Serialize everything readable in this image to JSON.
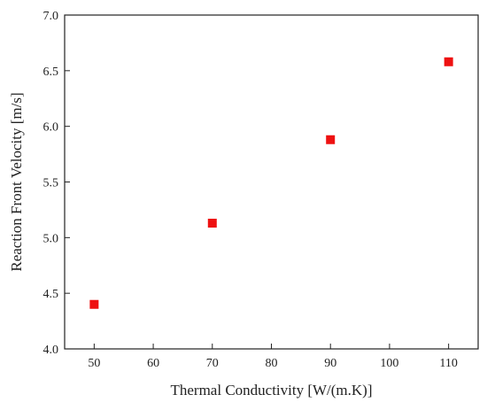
{
  "chart_data": {
    "type": "scatter",
    "title": "",
    "xlabel": "Thermal Conductivity [W/(m.K)]",
    "ylabel": "Reaction Front Velocity [m/s]",
    "xlim": [
      45,
      115
    ],
    "ylim": [
      4.0,
      7.0
    ],
    "x_ticks": [
      50,
      60,
      70,
      80,
      90,
      100,
      110
    ],
    "y_ticks": [
      4.0,
      4.5,
      5.0,
      5.5,
      6.0,
      6.5,
      7.0
    ],
    "y_tick_labels": [
      "4.0",
      "4.5",
      "5.0",
      "5.5",
      "6.0",
      "6.5",
      "7.0"
    ],
    "grid": false,
    "legend": "none",
    "marker": "square",
    "marker_color": "#ee1111",
    "series": [
      {
        "points": [
          {
            "x": 50,
            "y": 4.4
          },
          {
            "x": 70,
            "y": 5.13
          },
          {
            "x": 90,
            "y": 5.88
          },
          {
            "x": 110,
            "y": 6.58
          }
        ]
      }
    ]
  }
}
